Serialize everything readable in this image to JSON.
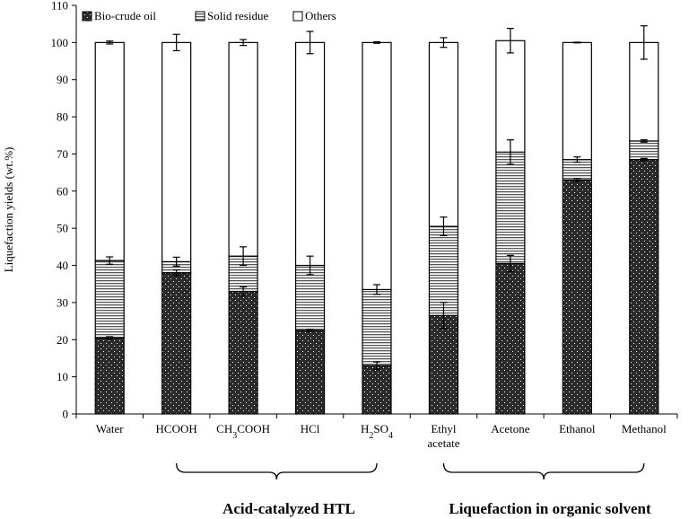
{
  "chart_data": {
    "type": "bar",
    "stacked": true,
    "ylabel": "Liquefaction yields (wt.%)",
    "ylim": [
      0,
      110
    ],
    "ytick_step": 10,
    "grid": false,
    "legend_position": "top-left",
    "categories": [
      "Water",
      "HCOOH",
      "CH3COOH",
      "HCl",
      "H2SO4",
      "Ethyl acetate",
      "Acetone",
      "Ethanol",
      "Methanol"
    ],
    "category_labels": [
      {
        "lines": [
          [
            {
              "t": "Water"
            }
          ]
        ]
      },
      {
        "lines": [
          [
            {
              "t": "HCOOH"
            }
          ]
        ]
      },
      {
        "lines": [
          [
            {
              "t": "CH"
            },
            {
              "t": "3",
              "sub": true
            },
            {
              "t": "COOH"
            }
          ]
        ]
      },
      {
        "lines": [
          [
            {
              "t": "HCl"
            }
          ]
        ]
      },
      {
        "lines": [
          [
            {
              "t": "H"
            },
            {
              "t": "2",
              "sub": true
            },
            {
              "t": "SO"
            },
            {
              "t": "4",
              "sub": true
            }
          ]
        ]
      },
      {
        "lines": [
          [
            {
              "t": "Ethyl"
            }
          ],
          [
            {
              "t": "acetate"
            }
          ]
        ]
      },
      {
        "lines": [
          [
            {
              "t": "Acetone"
            }
          ]
        ]
      },
      {
        "lines": [
          [
            {
              "t": "Ethanol"
            }
          ]
        ]
      },
      {
        "lines": [
          [
            {
              "t": "Methanol"
            }
          ]
        ]
      }
    ],
    "series": [
      {
        "name": "Bio-crude oil",
        "pattern": "dark-dots",
        "values": [
          20.5,
          38.0,
          33.0,
          22.5,
          13.0,
          26.5,
          40.5,
          63.0,
          68.5
        ],
        "errors": [
          0.3,
          0.8,
          1.2,
          0.3,
          1.0,
          3.5,
          2.2,
          0.4,
          0.3
        ]
      },
      {
        "name": "Solid residue",
        "pattern": "horizontal-lines",
        "values": [
          20.8,
          3.0,
          9.5,
          17.5,
          20.5,
          24.0,
          30.0,
          5.5,
          5.0
        ],
        "errors": [
          1.0,
          1.2,
          2.5,
          2.5,
          1.3,
          2.5,
          3.3,
          0.7,
          0.3
        ]
      },
      {
        "name": "Others",
        "pattern": "white",
        "values": [
          58.7,
          59.0,
          57.5,
          60.0,
          66.5,
          49.5,
          30.0,
          31.5,
          26.5
        ],
        "errors": [
          0.4,
          2.2,
          0.8,
          3.0,
          0.2,
          1.3,
          3.3,
          0.1,
          4.5
        ]
      }
    ],
    "groups": [
      {
        "label": "Acid-catalyzed HTL",
        "from": 1,
        "to": 4
      },
      {
        "label": "Liquefaction in organic solvent",
        "from": 5,
        "to": 8
      }
    ]
  }
}
